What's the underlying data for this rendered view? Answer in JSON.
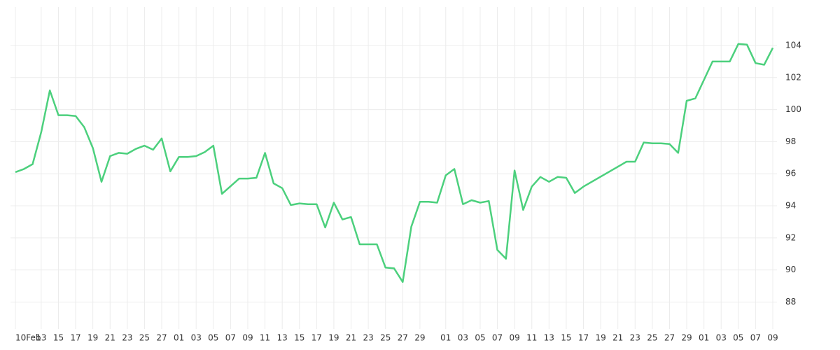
{
  "chart_data": {
    "type": "line",
    "x": [
      "Feb 10",
      "Feb 11",
      "Feb 12",
      "Feb 13",
      "Feb 14",
      "Feb 15",
      "Feb 16",
      "Feb 17",
      "Feb 18",
      "Feb 19",
      "Feb 20",
      "Feb 21",
      "Feb 22",
      "Feb 23",
      "Feb 24",
      "Feb 25",
      "Feb 26",
      "Feb 27",
      "Feb 28",
      "Mar 1",
      "Mar 2",
      "Mar 3",
      "Mar 4",
      "Mar 5",
      "Mar 6",
      "Mar 8",
      "Mar 9",
      "Mar 10",
      "Mar 11",
      "Mar 12",
      "Mar 13",
      "Mar 14",
      "Mar 15",
      "Mar 16",
      "Mar 17",
      "Mar 18",
      "Mar 19",
      "Mar 20",
      "Mar 21",
      "Mar 22",
      "Mar 23",
      "Mar 24",
      "Mar 25",
      "Mar 26",
      "Mar 27",
      "Mar 28",
      "Mar 29",
      "Mar 30",
      "Mar 31",
      "Apr 1",
      "Apr 2",
      "Apr 3",
      "Apr 4",
      "Apr 5",
      "Apr 6",
      "Apr 7",
      "Apr 8",
      "Apr 9",
      "Apr 10",
      "Apr 11",
      "Apr 12",
      "Apr 13",
      "Apr 14",
      "Apr 15",
      "Apr 16",
      "Apr 17",
      "Apr 22",
      "Apr 23",
      "Apr 24",
      "Apr 25",
      "Apr 26",
      "Apr 27",
      "Apr 28",
      "Apr 29",
      "Apr 30",
      "May 2",
      "May 3",
      "May 4",
      "May 5",
      "May 6",
      "May 7",
      "May 8",
      "May 9"
    ],
    "series": [
      {
        "color": "#4cd07d",
        "values": [
          96.1,
          96.3,
          96.6,
          98.6,
          101.2,
          99.65,
          99.65,
          99.6,
          98.9,
          97.6,
          95.5,
          97.1,
          97.3,
          97.25,
          97.55,
          97.75,
          97.5,
          98.2,
          96.15,
          97.05,
          97.05,
          97.1,
          97.35,
          97.75,
          94.75,
          95.7,
          95.7,
          95.75,
          97.3,
          95.4,
          95.1,
          94.05,
          94.15,
          94.1,
          94.1,
          92.65,
          94.2,
          93.15,
          93.3,
          91.6,
          91.6,
          91.6,
          90.15,
          90.1,
          89.25,
          92.7,
          94.25,
          94.25,
          94.2,
          95.9,
          96.3,
          94.1,
          94.35,
          94.2,
          94.3,
          91.25,
          90.7,
          96.2,
          93.75,
          95.2,
          95.8,
          95.5,
          95.8,
          95.75,
          94.8,
          95.2,
          96.75,
          96.75,
          97.95,
          97.9,
          97.9,
          97.85,
          97.3,
          100.55,
          100.7,
          103.0,
          103.0,
          103.0,
          104.1,
          104.05,
          102.9,
          102.8,
          103.85
        ]
      }
    ],
    "xlim": [
      "Feb 10",
      "May 9"
    ],
    "xticks": [
      {
        "value": "Feb 10",
        "label": "10Feb"
      },
      {
        "value": "Feb 13",
        "label": "13"
      },
      {
        "value": "Feb 15",
        "label": "15"
      },
      {
        "value": "Feb 17",
        "label": "17"
      },
      {
        "value": "Feb 19",
        "label": "19"
      },
      {
        "value": "Feb 21",
        "label": "21"
      },
      {
        "value": "Feb 23",
        "label": "23"
      },
      {
        "value": "Feb 25",
        "label": "25"
      },
      {
        "value": "Feb 27",
        "label": "27"
      },
      {
        "value": "Mar 1",
        "label": "01"
      },
      {
        "value": "Mar 3",
        "label": "03"
      },
      {
        "value": "Mar 5",
        "label": "05"
      },
      {
        "value": "Mar 7",
        "label": "07"
      },
      {
        "value": "Mar 9",
        "label": "09"
      },
      {
        "value": "Mar 11",
        "label": "11"
      },
      {
        "value": "Mar 13",
        "label": "13"
      },
      {
        "value": "Mar 15",
        "label": "15"
      },
      {
        "value": "Mar 17",
        "label": "17"
      },
      {
        "value": "Mar 19",
        "label": "19"
      },
      {
        "value": "Mar 21",
        "label": "21"
      },
      {
        "value": "Mar 23",
        "label": "23"
      },
      {
        "value": "Mar 25",
        "label": "25"
      },
      {
        "value": "Mar 27",
        "label": "27"
      },
      {
        "value": "Mar 29",
        "label": "29"
      },
      {
        "value": "Apr 1",
        "label": "01"
      },
      {
        "value": "Apr 3",
        "label": "03"
      },
      {
        "value": "Apr 5",
        "label": "05"
      },
      {
        "value": "Apr 7",
        "label": "07"
      },
      {
        "value": "Apr 9",
        "label": "09"
      },
      {
        "value": "Apr 11",
        "label": "11"
      },
      {
        "value": "Apr 13",
        "label": "13"
      },
      {
        "value": "Apr 15",
        "label": "15"
      },
      {
        "value": "Apr 17",
        "label": "17"
      },
      {
        "value": "Apr 19",
        "label": "19"
      },
      {
        "value": "Apr 21",
        "label": "21"
      },
      {
        "value": "Apr 23",
        "label": "23"
      },
      {
        "value": "Apr 25",
        "label": "25"
      },
      {
        "value": "Apr 27",
        "label": "27"
      },
      {
        "value": "Apr 29",
        "label": "29"
      },
      {
        "value": "May 1",
        "label": "01"
      },
      {
        "value": "May 3",
        "label": "03"
      },
      {
        "value": "May 5",
        "label": "05"
      },
      {
        "value": "May 7",
        "label": "07"
      },
      {
        "value": "May 9",
        "label": "09"
      }
    ],
    "ylim": [
      86.1,
      106.4
    ],
    "yticks": [
      88,
      90,
      92,
      94,
      96,
      98,
      100,
      102,
      104
    ],
    "grid": true
  }
}
